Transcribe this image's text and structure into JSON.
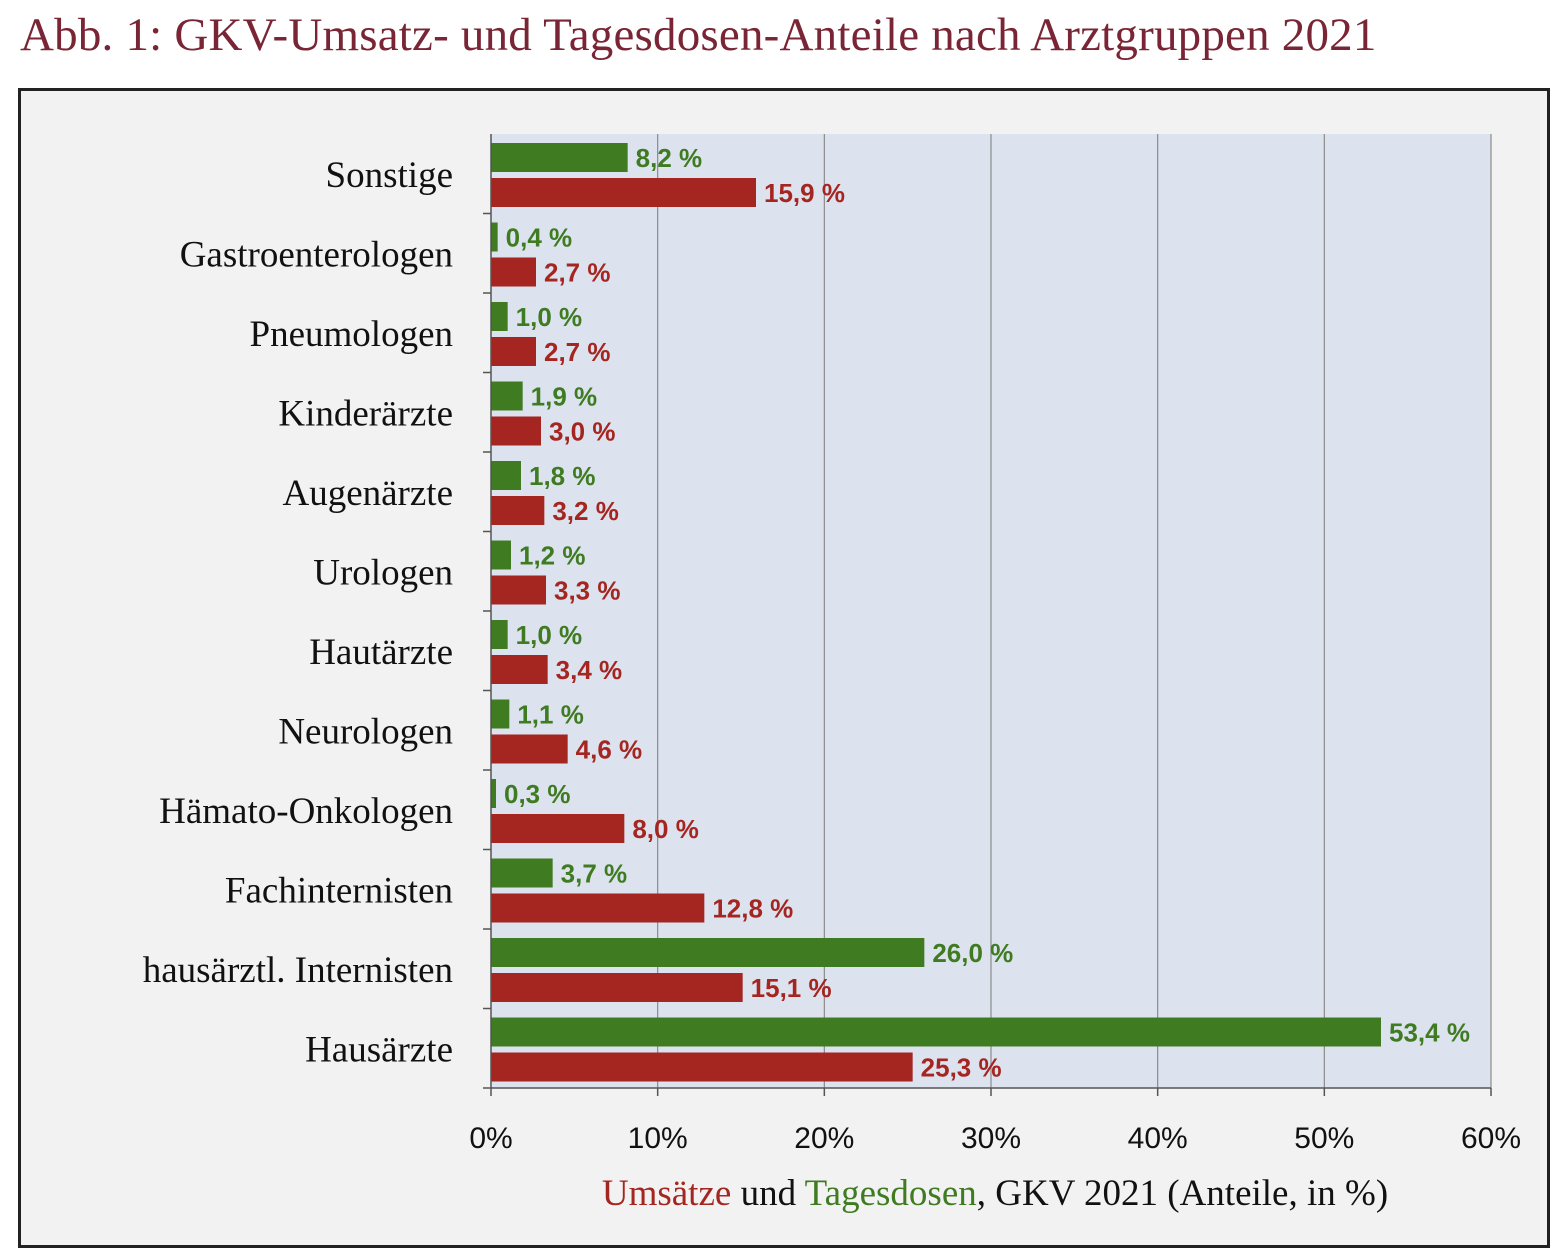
{
  "header": {
    "title": "Abb. 1: GKV-Umsatz- und Tagesdosen-Anteile nach Arztgruppen 2021"
  },
  "colors": {
    "title": "#7a2535",
    "umsatz": "#a52620",
    "tagesdosen": "#3f7b21",
    "plot_bg": "#dce3ef",
    "frame_bg": "#f2f2f2"
  },
  "chart_data": {
    "type": "bar",
    "orientation": "horizontal",
    "categories": [
      "Sonstige",
      "Gastroenterologen",
      "Pneumologen",
      "Kinderärzte",
      "Augenärzte",
      "Urologen",
      "Hautärzte",
      "Neurologen",
      "Hämato-Onkologen",
      "Fachinternisten",
      "hausärztl. Internisten",
      "Hausärzte"
    ],
    "series": [
      {
        "name": "Tagesdosen",
        "color": "#3f7b21",
        "values": [
          8.2,
          0.4,
          1.0,
          1.9,
          1.8,
          1.2,
          1.0,
          1.1,
          0.3,
          3.7,
          26.0,
          53.4
        ],
        "labels": [
          "8,2 %",
          "0,4 %",
          "1,0 %",
          "1,9 %",
          "1,8 %",
          "1,2 %",
          "1,0 %",
          "1,1 %",
          "0,3 %",
          "3,7 %",
          "26,0 %",
          "53,4 %"
        ]
      },
      {
        "name": "Umsätze",
        "color": "#a52620",
        "values": [
          15.9,
          2.7,
          2.7,
          3.0,
          3.2,
          3.3,
          3.4,
          4.6,
          8.0,
          12.8,
          15.1,
          25.3
        ],
        "labels": [
          "15,9 %",
          "2,7 %",
          "2,7 %",
          "3,0 %",
          "3,2 %",
          "3,3 %",
          "3,4 %",
          "4,6 %",
          "8,0 %",
          "12,8 %",
          "15,1 %",
          "25,3 %"
        ]
      }
    ],
    "xlim": [
      0,
      60
    ],
    "xticks": [
      "0%",
      "10%",
      "20%",
      "30%",
      "40%",
      "50%",
      "60%"
    ],
    "xlabel": {
      "part1": "Umsätze",
      "part2": " und ",
      "part3": "Tagesdosen",
      "part4": ", GKV 2021 (Anteile, in %)"
    },
    "grid": "vertical"
  }
}
